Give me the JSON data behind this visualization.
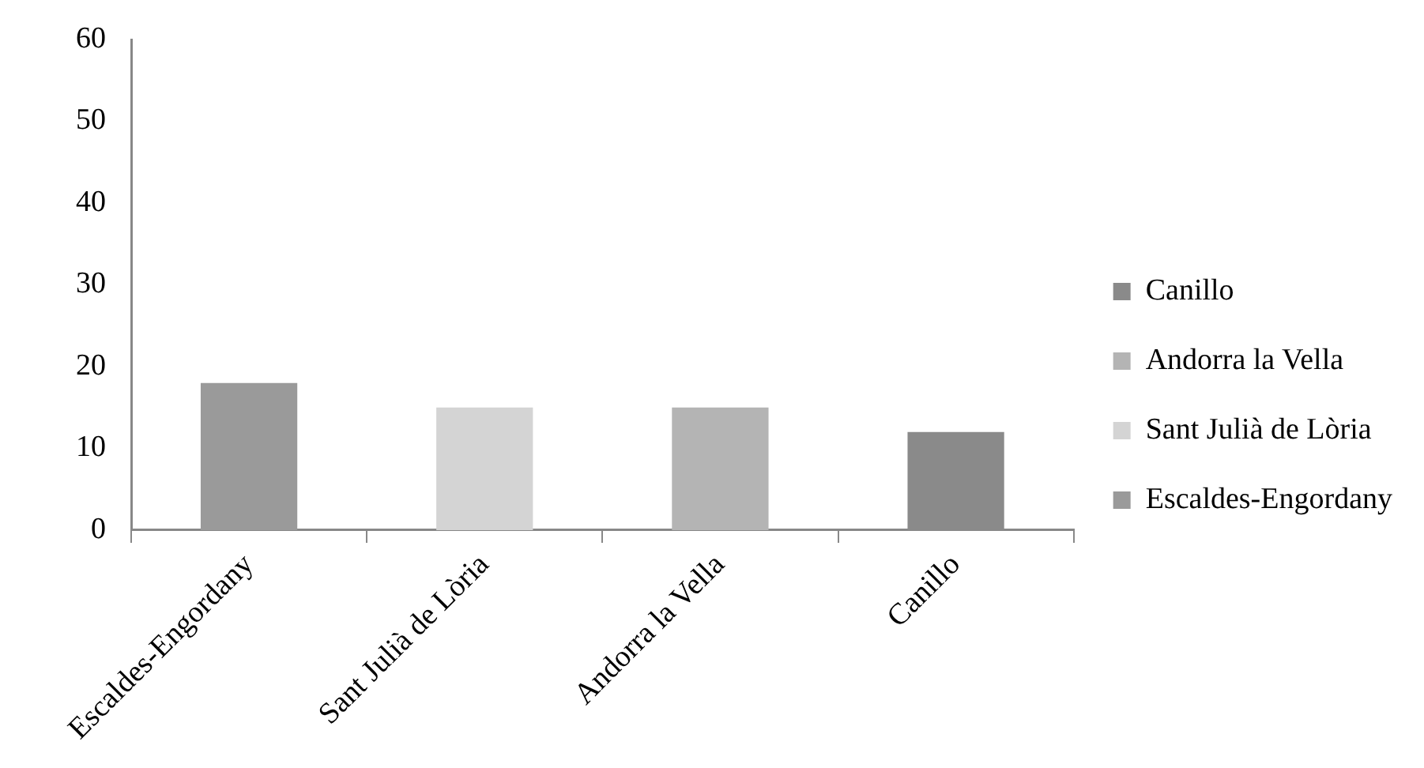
{
  "chart_data": {
    "type": "bar",
    "categories": [
      "Escaldes-Engordany",
      "Sant Julià de Lòria",
      "Andorra la Vella",
      "Canillo"
    ],
    "series": [
      {
        "name": "Escaldes-Engordany",
        "color": "#9a9a9a",
        "values": [
          18,
          null,
          null,
          null
        ]
      },
      {
        "name": "Sant Julià de Lòria",
        "color": "#d4d4d4",
        "values": [
          null,
          15,
          null,
          null
        ]
      },
      {
        "name": "Andorra la Vella",
        "color": "#b4b4b4",
        "values": [
          null,
          null,
          15,
          null
        ]
      },
      {
        "name": "Canillo",
        "color": "#8a8a8a",
        "values": [
          null,
          null,
          null,
          12
        ]
      }
    ],
    "ylim": [
      0,
      60
    ],
    "yticks": [
      0,
      10,
      20,
      30,
      40,
      50,
      60
    ],
    "grid": false,
    "legend": "right"
  }
}
